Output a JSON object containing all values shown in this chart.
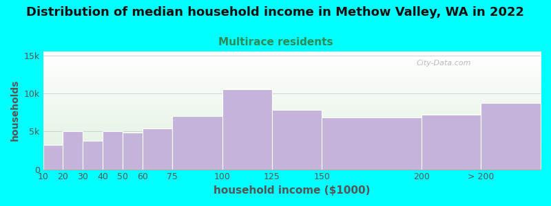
{
  "title": "Distribution of median household income in Methow Valley, WA in 2022",
  "subtitle": "Multirace residents",
  "xlabel": "household income ($1000)",
  "ylabel": "households",
  "background_outer": "#00FFFF",
  "bar_color": "#c5b4d9",
  "bar_edge_color": "#c8b8dc",
  "grid_color": "#cccccc",
  "title_fontsize": 13,
  "subtitle_fontsize": 11,
  "subtitle_color": "#2e8b57",
  "ylabel_fontsize": 10,
  "xlabel_fontsize": 11,
  "tick_color": "#555555",
  "categories": [
    "10",
    "20",
    "30",
    "40",
    "50",
    "60",
    "75",
    "100",
    "125",
    "150",
    "200",
    "> 200"
  ],
  "values": [
    3200,
    5000,
    3800,
    5000,
    4800,
    5400,
    7000,
    10500,
    7800,
    6800,
    7200,
    8700
  ],
  "bar_lefts": [
    10,
    20,
    30,
    40,
    50,
    60,
    75,
    100,
    125,
    150,
    200,
    230
  ],
  "bar_rights": [
    20,
    30,
    40,
    50,
    60,
    75,
    100,
    125,
    150,
    200,
    230,
    260
  ],
  "ylim": [
    0,
    15500
  ],
  "yticks": [
    0,
    5000,
    10000,
    15000
  ],
  "ytick_labels": [
    "0",
    "5k",
    "10k",
    "15k"
  ],
  "watermark_text": "City-Data.com",
  "figsize": [
    8.0,
    3.0
  ],
  "dpi": 100
}
